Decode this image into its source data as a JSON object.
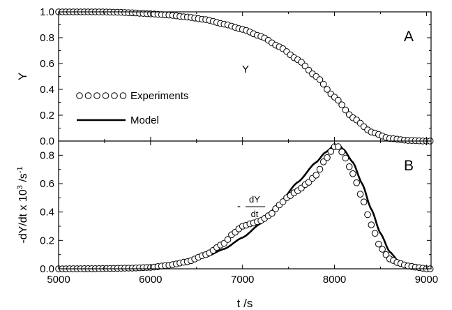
{
  "chart_data": [
    {
      "type": "scatter",
      "panel_label": "A",
      "xlabel": "",
      "ylabel": "Y",
      "xlim": [
        5000,
        9050
      ],
      "ylim": [
        0.0,
        1.0
      ],
      "x_ticks": [
        5000,
        6000,
        7000,
        8000,
        9000
      ],
      "y_ticks": [
        "0.0",
        "0.2",
        "0.4",
        "0.6",
        "0.8",
        "1.0"
      ],
      "curve_annotation": "Y",
      "legend": {
        "placement": "center-left",
        "entries": [
          {
            "label": "Experiments",
            "marker": "circle"
          },
          {
            "label": "Model",
            "marker": "line"
          }
        ]
      },
      "series": [
        {
          "name": "Experiments",
          "style": "open-circle",
          "points": [
            [
              5000,
              1.0
            ],
            [
              5200,
              1.0
            ],
            [
              5400,
              1.0
            ],
            [
              5600,
              0.998
            ],
            [
              5800,
              0.993
            ],
            [
              6000,
              0.985
            ],
            [
              6200,
              0.975
            ],
            [
              6400,
              0.96
            ],
            [
              6600,
              0.94
            ],
            [
              6800,
              0.905
            ],
            [
              7000,
              0.865
            ],
            [
              7200,
              0.81
            ],
            [
              7400,
              0.73
            ],
            [
              7600,
              0.63
            ],
            [
              7800,
              0.5
            ],
            [
              8000,
              0.34
            ],
            [
              8200,
              0.18
            ],
            [
              8400,
              0.07
            ],
            [
              8600,
              0.02
            ],
            [
              8800,
              0.005
            ],
            [
              9000,
              0.0
            ],
            [
              9050,
              0.0
            ]
          ]
        },
        {
          "name": "Model",
          "style": "solid-line",
          "points": [
            [
              5000,
              1.0
            ],
            [
              5200,
              1.0
            ],
            [
              5400,
              1.0
            ],
            [
              5600,
              0.998
            ],
            [
              5800,
              0.994
            ],
            [
              6000,
              0.987
            ],
            [
              6200,
              0.977
            ],
            [
              6400,
              0.962
            ],
            [
              6600,
              0.942
            ],
            [
              6800,
              0.91
            ],
            [
              7000,
              0.87
            ],
            [
              7200,
              0.815
            ],
            [
              7400,
              0.74
            ],
            [
              7600,
              0.64
            ],
            [
              7800,
              0.505
            ],
            [
              8000,
              0.34
            ],
            [
              8200,
              0.175
            ],
            [
              8400,
              0.065
            ],
            [
              8600,
              0.018
            ],
            [
              8800,
              0.004
            ],
            [
              9000,
              0.0
            ],
            [
              9050,
              0.0
            ]
          ]
        }
      ]
    },
    {
      "type": "scatter",
      "panel_label": "B",
      "xlabel": "t /s",
      "ylabel_main": "-dY/dt x 10",
      "ylabel_sup1": "3",
      "ylabel_mid": " /s",
      "ylabel_sup2": "-1",
      "xlim": [
        5000,
        9050
      ],
      "ylim": [
        0.0,
        0.9
      ],
      "x_ticks": [
        "5000",
        "6000",
        "7000",
        "8000",
        "9000"
      ],
      "y_ticks": [
        "0.0",
        "0.2",
        "0.4",
        "0.6",
        "0.8"
      ],
      "curve_annotation": {
        "prefix": "-",
        "numerator": "dY",
        "denominator": "dt"
      },
      "series": [
        {
          "name": "Experiments",
          "style": "open-circle",
          "points": [
            [
              5000,
              0.0
            ],
            [
              5400,
              0.001
            ],
            [
              5800,
              0.005
            ],
            [
              6000,
              0.01
            ],
            [
              6200,
              0.025
            ],
            [
              6400,
              0.05
            ],
            [
              6600,
              0.1
            ],
            [
              6800,
              0.18
            ],
            [
              6900,
              0.25
            ],
            [
              7000,
              0.3
            ],
            [
              7100,
              0.32
            ],
            [
              7200,
              0.34
            ],
            [
              7300,
              0.38
            ],
            [
              7400,
              0.45
            ],
            [
              7500,
              0.51
            ],
            [
              7600,
              0.55
            ],
            [
              7700,
              0.6
            ],
            [
              7800,
              0.66
            ],
            [
              7900,
              0.77
            ],
            [
              8000,
              0.86
            ],
            [
              8050,
              0.86
            ],
            [
              8100,
              0.8
            ],
            [
              8200,
              0.67
            ],
            [
              8300,
              0.5
            ],
            [
              8400,
              0.31
            ],
            [
              8500,
              0.15
            ],
            [
              8600,
              0.07
            ],
            [
              8700,
              0.04
            ],
            [
              8800,
              0.02
            ],
            [
              8900,
              0.01
            ],
            [
              9000,
              0.0
            ],
            [
              9050,
              0.0
            ]
          ]
        },
        {
          "name": "Model",
          "style": "solid-line",
          "points": [
            [
              5000,
              0.0
            ],
            [
              5400,
              0.002
            ],
            [
              5800,
              0.007
            ],
            [
              6000,
              0.012
            ],
            [
              6200,
              0.025
            ],
            [
              6400,
              0.045
            ],
            [
              6600,
              0.085
            ],
            [
              6800,
              0.14
            ],
            [
              7000,
              0.22
            ],
            [
              7200,
              0.32
            ],
            [
              7400,
              0.46
            ],
            [
              7600,
              0.61
            ],
            [
              7800,
              0.75
            ],
            [
              7900,
              0.82
            ],
            [
              8000,
              0.87
            ],
            [
              8050,
              0.87
            ],
            [
              8100,
              0.84
            ],
            [
              8200,
              0.75
            ],
            [
              8300,
              0.6
            ],
            [
              8400,
              0.42
            ],
            [
              8500,
              0.25
            ],
            [
              8600,
              0.12
            ],
            [
              8700,
              0.05
            ],
            [
              8800,
              0.02
            ],
            [
              8900,
              0.006
            ],
            [
              9000,
              0.001
            ],
            [
              9050,
              0.0
            ]
          ]
        }
      ]
    }
  ]
}
